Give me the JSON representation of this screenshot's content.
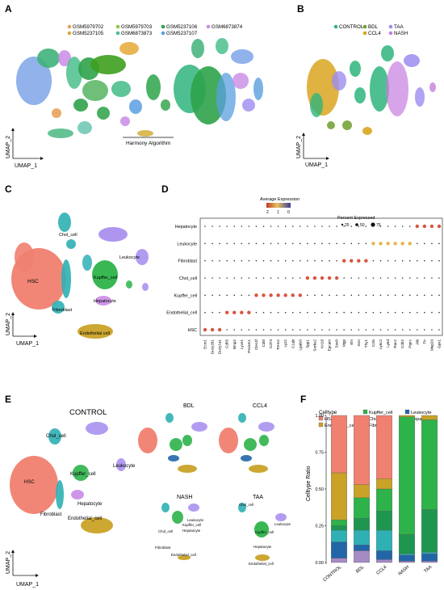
{
  "panels": {
    "A": "A",
    "B": "B",
    "C": "C",
    "D": "D",
    "E": "E",
    "F": "F"
  },
  "panelA": {
    "samples": [
      {
        "name": "GSM5979702",
        "color": "#E8A25A"
      },
      {
        "name": "GSM5237105",
        "color": "#D4AE3A"
      },
      {
        "name": "GSM5979703",
        "color": "#9BC54A"
      },
      {
        "name": "GSM6873873",
        "color": "#4BBF8C"
      },
      {
        "name": "GSM5237106",
        "color": "#2DA34A"
      },
      {
        "name": "GSM5237107",
        "color": "#5A9FE0"
      },
      {
        "name": "GSM6873874",
        "color": "#C98BE6"
      }
    ],
    "annotation": "Harmony Algorithm",
    "xlabel": "UMAP_1",
    "ylabel": "UMAP_2"
  },
  "panelB": {
    "groups": [
      {
        "name": "CONTROL",
        "color": "#2FB47C"
      },
      {
        "name": "BDL",
        "color": "#6F9E2E"
      },
      {
        "name": "CCL4",
        "color": "#D9A520"
      },
      {
        "name": "TAA",
        "color": "#9C8CF0"
      },
      {
        "name": "NASH",
        "color": "#C77EE0"
      }
    ],
    "xlabel": "UMAP_1",
    "ylabel": "UMAP_2"
  },
  "panelC": {
    "clusters": {
      "hsc": "HSC",
      "chol": "Chol_cell",
      "leuk": "Leukocyte",
      "kupf": "Kupffer_cell",
      "hep": "Hepatocyte",
      "fib": "Fibroblast",
      "endo": "Endothelial cell"
    },
    "xlabel": "UMAP_1",
    "ylabel": "UMAP_2"
  },
  "panelD": {
    "legend_expr_title": "Average Expression",
    "legend_expr_ticks": [
      "2",
      "1",
      "0"
    ],
    "legend_pct_title": "Percent Expressed",
    "legend_pct_ticks": [
      "25",
      "50",
      "75"
    ],
    "rows": [
      "Hepatocyte",
      "Leukocyte",
      "Fibroblast",
      "Chol_cell",
      "Kupffer_cell",
      "Endothelial_cell",
      "HSC"
    ],
    "genes": [
      "Ecm1",
      "Gucy1b1",
      "Gucy1a1",
      "Cdh5",
      "Bmp2",
      "Lyve1",
      "Pecam1",
      "Clec4f",
      "Cd5l",
      "Cd74",
      "Trem2",
      "Lyz2",
      "C1qb",
      "Lgals3",
      "Spp1",
      "Sorbs2",
      "Krt18",
      "Epcam",
      "Sox9",
      "Mgp",
      "Eln",
      "Gsn",
      "Thy1",
      "Ccl5",
      "Ly6c2",
      "Ly6d",
      "Rac2",
      "Cd52",
      "Ptprc",
      "Alb",
      "Ttr",
      "Mup20",
      "Gpx1"
    ]
  },
  "panelE": {
    "conditions": {
      "control": "CONTROL",
      "bdl": "BDL",
      "ccl4": "CCL4",
      "nash": "NASH",
      "taa": "TAA"
    },
    "control_labels": {
      "chol": "Chol_cell",
      "leuk": "Leukocyte",
      "hsc": "HSC",
      "kupf": "Kupffer_cell",
      "fib": "Fibroblast",
      "hep": "Hepatocyte",
      "endo": "Endothelial_cell"
    },
    "nash_labels": {
      "leuk": "Leukocyte",
      "kupf": "Kupffer_cell",
      "hep": "Hepatocyte",
      "chol": "Chol_cell",
      "fib": "Fibroblast",
      "endo": "Endothelial_cell"
    },
    "taa_labels": {
      "chol": "Chol_cell",
      "leuk": "Leukocyte",
      "kupf": "Kupffer_cell",
      "hep": "Hepatocyte",
      "endo": "Endothelial_cell"
    },
    "xlabel": "UMAP_1",
    "ylabel": "UMAP_2"
  },
  "chart_data": {
    "type": "bar",
    "stacked": true,
    "legend_title": "Celltype",
    "categories": [
      "CONTROL",
      "BDL",
      "CCL4",
      "NASH",
      "TAA"
    ],
    "ylabel": "Celltype Ratio",
    "xlabel": "",
    "ylim": [
      0,
      1
    ],
    "yticks": [
      "0.00",
      "0.25",
      "0.50",
      "0.75",
      "1.00"
    ],
    "series": [
      {
        "name": "Hepatocyte",
        "color": "#A58BC4",
        "values": [
          0.03,
          0.08,
          0.02,
          0.01,
          0.01
        ]
      },
      {
        "name": "Leukocyte",
        "color": "#2266A8",
        "values": [
          0.11,
          0.04,
          0.06,
          0.04,
          0.05
        ]
      },
      {
        "name": "Fibroblast",
        "color": "#2FB0B4",
        "values": [
          0.08,
          0.1,
          0.14,
          0.01,
          0.01
        ]
      },
      {
        "name": "Chol_cell",
        "color": "#1E9650",
        "values": [
          0.03,
          0.08,
          0.13,
          0.13,
          0.29
        ]
      },
      {
        "name": "Kupffer_cell",
        "color": "#2DB34A",
        "values": [
          0.04,
          0.14,
          0.15,
          0.8,
          0.61
        ]
      },
      {
        "name": "Endothelial_cell",
        "color": "#C9A227",
        "values": [
          0.32,
          0.09,
          0.07,
          0.01,
          0.03
        ]
      },
      {
        "name": "HSC",
        "color": "#F08070",
        "values": [
          0.39,
          0.47,
          0.43,
          0.0,
          0.0
        ]
      }
    ]
  }
}
